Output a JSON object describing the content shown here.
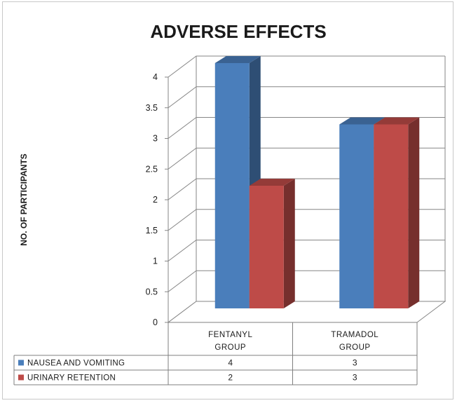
{
  "chart_data": {
    "type": "bar",
    "title": "ADVERSE EFFECTS",
    "xlabel": "",
    "ylabel": "NO. OF PARTICIPANTS",
    "ylim": [
      0,
      4
    ],
    "yticks": [
      "0",
      "0.5",
      "1",
      "1.5",
      "2",
      "2.5",
      "3",
      "3.5",
      "4"
    ],
    "categories": [
      "FENTANYL GROUP",
      "TRAMADOL GROUP"
    ],
    "category_lines": [
      [
        "FENTANYL",
        "GROUP"
      ],
      [
        "TRAMADOL",
        "GROUP"
      ]
    ],
    "series": [
      {
        "name": "NAUSEA AND VOMITING",
        "values": [
          4,
          3
        ],
        "color": "#4a7ebb"
      },
      {
        "name": "URINARY RETENTION",
        "values": [
          2,
          3
        ],
        "color": "#be4b48"
      }
    ],
    "grid": true,
    "three_d": true,
    "legend": "data-table-bottom"
  }
}
